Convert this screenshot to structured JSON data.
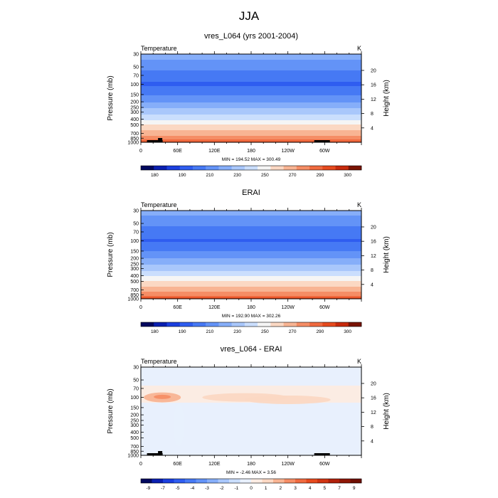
{
  "figure": {
    "title": "JJA"
  },
  "shared": {
    "left_label": "Temperature",
    "units": "K",
    "ylabel": "Pressure (mb)",
    "ylabel_right": "Height (km)",
    "pressure_ticks": [
      {
        "value": 30,
        "label": "30"
      },
      {
        "value": 50,
        "label": "50"
      },
      {
        "value": 70,
        "label": "70"
      },
      {
        "value": 100,
        "label": "100"
      },
      {
        "value": 150,
        "label": "150"
      },
      {
        "value": 200,
        "label": "200"
      },
      {
        "value": 250,
        "label": "250"
      },
      {
        "value": 300,
        "label": "300"
      },
      {
        "value": 400,
        "label": "400"
      },
      {
        "value": 500,
        "label": "500"
      },
      {
        "value": 700,
        "label": "700"
      },
      {
        "value": 850,
        "label": "850"
      },
      {
        "value": 1000,
        "label": "1000"
      }
    ],
    "height_ticks": [
      {
        "value": 4,
        "label": "4"
      },
      {
        "value": 8,
        "label": "8"
      },
      {
        "value": 12,
        "label": "12"
      },
      {
        "value": 16,
        "label": "16"
      },
      {
        "value": 20,
        "label": "20"
      }
    ],
    "lon_ticks": [
      {
        "value": 0,
        "label": "0"
      },
      {
        "value": 60,
        "label": "60E"
      },
      {
        "value": 120,
        "label": "120E"
      },
      {
        "value": 180,
        "label": "180"
      },
      {
        "value": 240,
        "label": "120W"
      },
      {
        "value": 300,
        "label": "60W"
      }
    ],
    "xlim": [
      0,
      360
    ],
    "ylim": [
      1000,
      30
    ]
  },
  "chart_data": [
    {
      "type": "heatmap",
      "title": "vres_L064 (yrs 2001-2004)",
      "stats": "MIN = 194.52  MAX = 300.49",
      "min": 194.52,
      "max": 300.49,
      "levels": [
        175,
        180,
        185,
        190,
        200,
        210,
        220,
        230,
        240,
        250,
        260,
        270,
        280,
        290,
        295,
        300,
        305
      ],
      "colors": [
        "#02095e",
        "#0a1fb0",
        "#1b3fdf",
        "#2f5df0",
        "#4679f4",
        "#6393f7",
        "#86aef9",
        "#a9c7fb",
        "#cadefd",
        "#f5f5f5",
        "#fbd8c3",
        "#f8b493",
        "#f58d65",
        "#f06a3f",
        "#e64a1e",
        "#c72a0c",
        "#7a1303"
      ],
      "colorbar_labels": [
        "180",
        "190",
        "210",
        "230",
        "250",
        "270",
        "290",
        "300"
      ],
      "profile": [
        {
          "p": 30,
          "t": 225
        },
        {
          "p": 50,
          "t": 214
        },
        {
          "p": 70,
          "t": 205
        },
        {
          "p": 100,
          "t": 198
        },
        {
          "p": 150,
          "t": 209
        },
        {
          "p": 200,
          "t": 219
        },
        {
          "p": 250,
          "t": 229
        },
        {
          "p": 300,
          "t": 236
        },
        {
          "p": 400,
          "t": 248
        },
        {
          "p": 500,
          "t": 260
        },
        {
          "p": 700,
          "t": 275
        },
        {
          "p": 850,
          "t": 286
        },
        {
          "p": 1000,
          "t": 297
        }
      ]
    },
    {
      "type": "heatmap",
      "title": "ERAI",
      "stats": "MIN = 192.90  MAX = 302.26",
      "min": 192.9,
      "max": 302.26,
      "levels": [
        175,
        180,
        185,
        190,
        200,
        210,
        220,
        230,
        240,
        250,
        260,
        270,
        280,
        290,
        295,
        300,
        305
      ],
      "colors": [
        "#02095e",
        "#0a1fb0",
        "#1b3fdf",
        "#2f5df0",
        "#4679f4",
        "#6393f7",
        "#86aef9",
        "#a9c7fb",
        "#cadefd",
        "#f5f5f5",
        "#fbd8c3",
        "#f8b493",
        "#f58d65",
        "#f06a3f",
        "#e64a1e",
        "#c72a0c",
        "#7a1303"
      ],
      "colorbar_labels": [
        "180",
        "190",
        "210",
        "230",
        "250",
        "270",
        "290",
        "300"
      ],
      "profile": [
        {
          "p": 30,
          "t": 224
        },
        {
          "p": 50,
          "t": 213
        },
        {
          "p": 70,
          "t": 204
        },
        {
          "p": 100,
          "t": 199
        },
        {
          "p": 150,
          "t": 210
        },
        {
          "p": 200,
          "t": 220
        },
        {
          "p": 250,
          "t": 229
        },
        {
          "p": 300,
          "t": 236
        },
        {
          "p": 400,
          "t": 249
        },
        {
          "p": 500,
          "t": 261
        },
        {
          "p": 700,
          "t": 276
        },
        {
          "p": 850,
          "t": 287
        },
        {
          "p": 1000,
          "t": 298
        }
      ]
    },
    {
      "type": "heatmap",
      "title": "vres_L064 - ERAI",
      "stats": "MIN = -2.46  MAX = 3.56",
      "min": -2.46,
      "max": 3.56,
      "levels": [
        -10,
        -9,
        -8,
        -7,
        -6,
        -5,
        -4,
        -3,
        -2,
        -1,
        0,
        1,
        2,
        3,
        4,
        5,
        6,
        7,
        8,
        9,
        10
      ],
      "colors": [
        "#02095e",
        "#0a1fb0",
        "#1b3fdf",
        "#2f5df0",
        "#4679f4",
        "#6393f7",
        "#86aef9",
        "#a9c7fb",
        "#cadefd",
        "#e8f0fd",
        "#fbece3",
        "#fbd8c3",
        "#f8b493",
        "#f58d65",
        "#f06a3f",
        "#e64a1e",
        "#d03412",
        "#b0200a",
        "#8e1605",
        "#6e0e02"
      ],
      "colorbar_labels": [
        "-9",
        "-7",
        "-5",
        "-4",
        "-3",
        "-2",
        "-1",
        "0",
        "1",
        "2",
        "3",
        "4",
        "5",
        "7",
        "9"
      ],
      "profile": [
        {
          "p": 30,
          "t": -0.4
        },
        {
          "p": 50,
          "t": -0.5
        },
        {
          "p": 70,
          "t": 0.3
        },
        {
          "p": 100,
          "t": 0.6
        },
        {
          "p": 150,
          "t": -0.6
        },
        {
          "p": 200,
          "t": -0.5
        },
        {
          "p": 250,
          "t": -0.7
        },
        {
          "p": 300,
          "t": -0.8
        },
        {
          "p": 400,
          "t": -0.8
        },
        {
          "p": 500,
          "t": -0.7
        },
        {
          "p": 700,
          "t": -0.6
        },
        {
          "p": 850,
          "t": -0.5
        },
        {
          "p": 1000,
          "t": -0.5
        }
      ],
      "anomalies": [
        {
          "lon": 35,
          "p": 100,
          "value": 2.5
        },
        {
          "lon": 35,
          "p": 98,
          "value": 3.56
        },
        {
          "lon": 170,
          "p": 100,
          "value": 1.5
        },
        {
          "lon": 240,
          "p": 110,
          "value": 1.2
        },
        {
          "lon": 62,
          "p": 300,
          "value": -0.2
        }
      ]
    }
  ]
}
